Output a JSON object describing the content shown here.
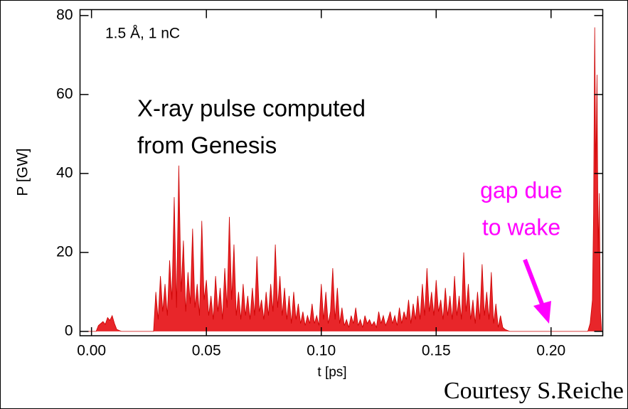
{
  "chart_data": {
    "type": "area",
    "x_label": "t [ps]",
    "y_label": "P [GW]",
    "annotations": {
      "beam": "1.5 Å, 1 nC",
      "title_line1": "X-ray pulse computed",
      "title_line2": "from Genesis",
      "gap_line1": "gap due",
      "gap_line2": "to wake",
      "credit": "Courtesy S.Reiche"
    },
    "color": "#e8262a",
    "xlim": [
      -0.005,
      0.2225
    ],
    "ylim": [
      -1.1,
      81.5
    ],
    "xticks": [
      {
        "value": 0,
        "label": "0.00"
      },
      0.05,
      {
        "value": 0.1,
        "label": "0.10"
      },
      0.15,
      {
        "value": 0.2,
        "label": "0.20"
      }
    ],
    "yticks": [
      0,
      20,
      40,
      60,
      80
    ],
    "x": [
      -0.004,
      0.002,
      0.003,
      0.005,
      0.006,
      0.007,
      0.008,
      0.009,
      0.01,
      0.011,
      0.013,
      0.027,
      0.028,
      0.029,
      0.03,
      0.031,
      0.032,
      0.033,
      0.034,
      0.035,
      0.036,
      0.037,
      0.038,
      0.039,
      0.04,
      0.041,
      0.042,
      0.043,
      0.044,
      0.045,
      0.046,
      0.047,
      0.048,
      0.049,
      0.05,
      0.051,
      0.052,
      0.053,
      0.054,
      0.055,
      0.056,
      0.057,
      0.058,
      0.059,
      0.06,
      0.061,
      0.062,
      0.063,
      0.064,
      0.065,
      0.066,
      0.067,
      0.068,
      0.069,
      0.07,
      0.071,
      0.072,
      0.073,
      0.074,
      0.075,
      0.076,
      0.077,
      0.078,
      0.079,
      0.08,
      0.081,
      0.082,
      0.083,
      0.084,
      0.085,
      0.086,
      0.087,
      0.088,
      0.089,
      0.09,
      0.091,
      0.092,
      0.093,
      0.094,
      0.095,
      0.096,
      0.097,
      0.098,
      0.099,
      0.1,
      0.101,
      0.102,
      0.103,
      0.104,
      0.105,
      0.106,
      0.107,
      0.108,
      0.109,
      0.11,
      0.111,
      0.112,
      0.113,
      0.114,
      0.115,
      0.116,
      0.117,
      0.118,
      0.119,
      0.12,
      0.121,
      0.122,
      0.123,
      0.124,
      0.125,
      0.126,
      0.127,
      0.128,
      0.129,
      0.13,
      0.131,
      0.132,
      0.133,
      0.134,
      0.135,
      0.136,
      0.137,
      0.138,
      0.139,
      0.14,
      0.141,
      0.142,
      0.143,
      0.144,
      0.145,
      0.146,
      0.147,
      0.148,
      0.149,
      0.15,
      0.151,
      0.152,
      0.153,
      0.154,
      0.155,
      0.156,
      0.157,
      0.158,
      0.159,
      0.16,
      0.161,
      0.162,
      0.163,
      0.164,
      0.165,
      0.166,
      0.167,
      0.168,
      0.169,
      0.17,
      0.171,
      0.172,
      0.173,
      0.174,
      0.175,
      0.176,
      0.177,
      0.178,
      0.179,
      0.18,
      0.182,
      0.216,
      0.217,
      0.218,
      0.2185,
      0.219,
      0.2195,
      0.22,
      0.2205,
      0.221,
      0.2215,
      0.222
    ],
    "values": [
      0,
      0,
      1.5,
      2.5,
      1.8,
      3.5,
      2.8,
      4,
      2,
      0.5,
      0,
      0,
      10,
      3,
      14,
      5,
      12,
      4,
      18,
      8,
      34,
      6,
      42,
      10,
      23,
      5,
      15,
      7,
      26,
      6,
      12,
      4,
      28,
      8,
      13,
      4,
      9,
      3,
      14,
      5,
      11,
      3,
      16,
      6,
      29,
      8,
      22,
      4,
      10,
      3,
      12,
      4,
      9,
      3,
      11,
      4,
      19,
      5,
      8,
      3,
      10,
      4,
      12,
      5,
      22,
      6,
      14,
      4,
      11,
      3,
      9,
      2,
      10,
      3,
      7,
      2,
      5,
      1.5,
      4,
      2,
      7,
      2,
      4,
      1.5,
      12,
      3,
      10,
      2,
      5,
      16,
      3,
      11,
      2,
      6,
      1.5,
      3,
      1,
      4,
      2,
      6,
      1.5,
      3,
      1,
      4,
      2,
      3,
      1.5,
      2.5,
      1,
      5,
      2,
      4,
      1.5,
      3,
      5,
      2,
      4,
      1.5,
      6,
      2,
      5,
      3,
      8,
      2,
      7,
      3,
      9,
      3,
      12,
      4,
      16,
      5,
      10,
      4,
      13,
      5,
      8,
      3,
      11,
      4,
      9,
      3,
      14,
      4,
      9,
      3,
      20,
      5,
      12,
      3,
      8,
      2,
      10,
      3,
      17,
      4,
      10,
      3,
      15,
      2,
      7,
      1,
      4,
      1,
      0.5,
      0,
      0,
      2,
      8,
      30,
      77,
      40,
      65,
      20,
      35,
      5,
      0
    ]
  }
}
